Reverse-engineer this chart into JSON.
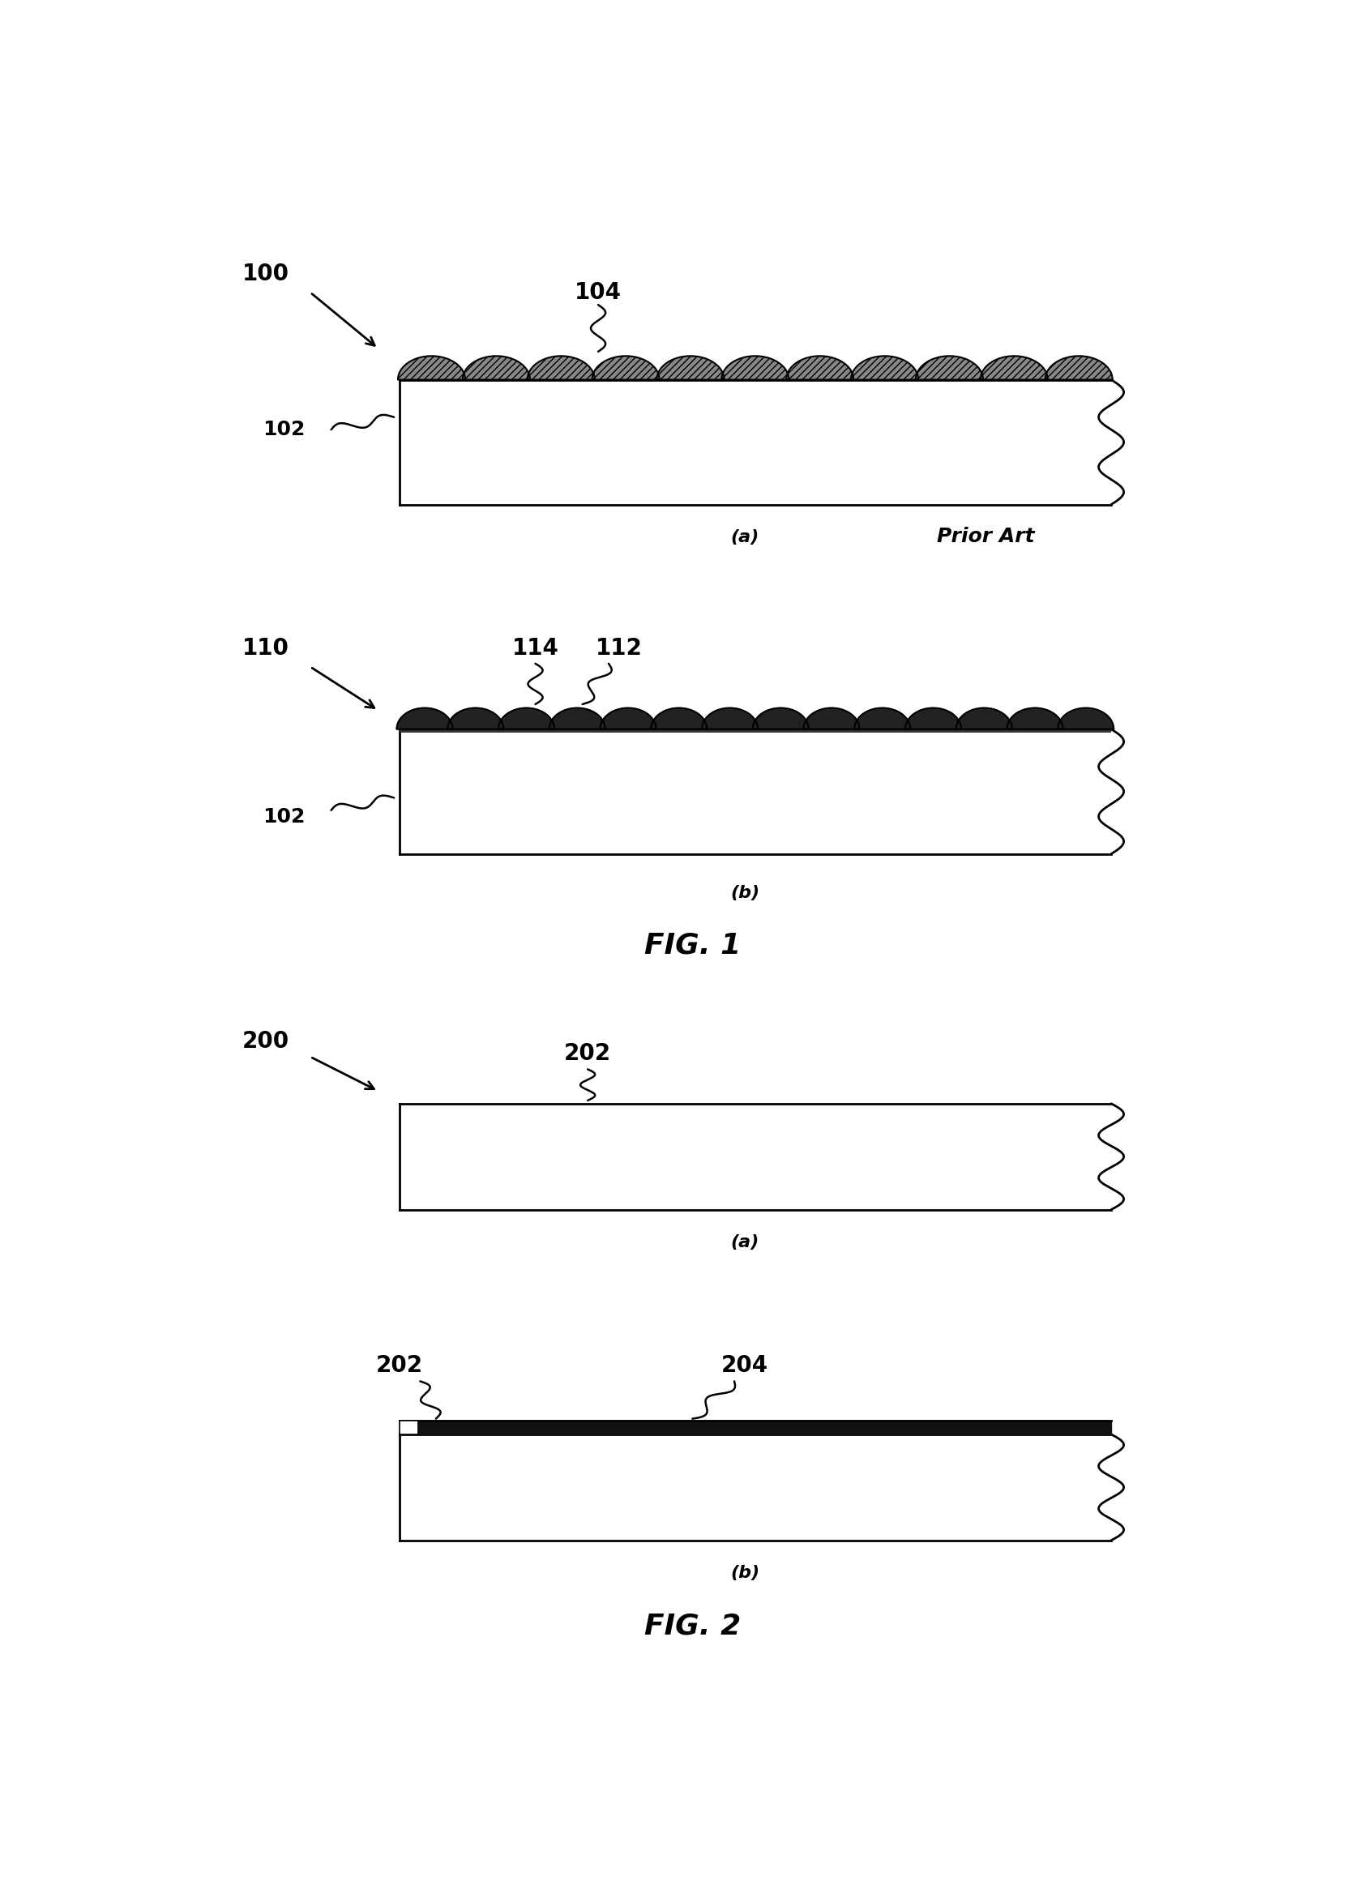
{
  "bg_color": "#ffffff",
  "fig_width": 16.67,
  "fig_height": 23.26,
  "fig1_label": "FIG. 1",
  "fig2_label": "FIG. 2",
  "label_100": "100",
  "label_102_a": "102",
  "label_102_b": "102",
  "label_104": "104",
  "label_110": "110",
  "label_112": "112",
  "label_114": "114",
  "label_200": "200",
  "label_202_a": "202",
  "label_202_b": "202",
  "label_204": "204",
  "sub_a_1": "(a)",
  "sub_b_1": "(b)",
  "prior_art": "Prior Art",
  "sub_a_2": "(a)",
  "sub_b_2": "(b)"
}
